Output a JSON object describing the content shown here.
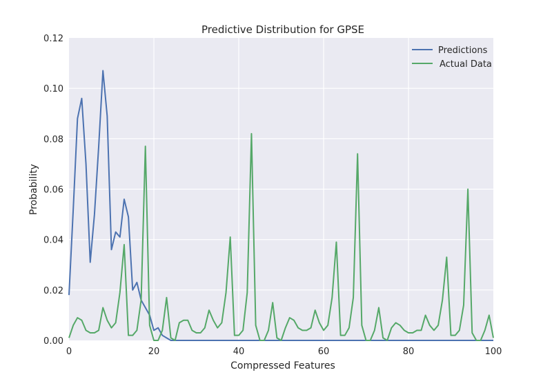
{
  "chart_data": {
    "type": "line",
    "title": "Predictive Distribution for GPSE",
    "xlabel": "Compressed Features",
    "ylabel": "Probability",
    "xlim": [
      0,
      100
    ],
    "ylim": [
      0,
      0.12
    ],
    "xticks": [
      0,
      20,
      40,
      60,
      80,
      100
    ],
    "xtick_labels": [
      "0",
      "20",
      "40",
      "60",
      "80",
      "100"
    ],
    "yticks": [
      0,
      0.02,
      0.04,
      0.06,
      0.08,
      0.1,
      0.12
    ],
    "ytick_labels": [
      "0.00",
      "0.02",
      "0.04",
      "0.06",
      "0.08",
      "0.10",
      "0.12"
    ],
    "grid": true,
    "legend_position": "top-right",
    "background": "#EAEAF2",
    "series": [
      {
        "name": "Predictions",
        "color": "#4C72B0",
        "x": [
          0,
          1,
          2,
          3,
          4,
          5,
          6,
          7,
          8,
          9,
          10,
          11,
          12,
          13,
          14,
          15,
          16,
          17,
          18,
          19,
          20,
          21,
          22,
          23,
          24,
          25,
          100
        ],
        "y": [
          0.018,
          0.052,
          0.088,
          0.096,
          0.07,
          0.031,
          0.05,
          0.077,
          0.107,
          0.089,
          0.036,
          0.043,
          0.041,
          0.056,
          0.049,
          0.02,
          0.023,
          0.016,
          0.013,
          0.01,
          0.004,
          0.005,
          0.002,
          0.001,
          0.0,
          0.0,
          0.0
        ]
      },
      {
        "name": "Actual Data",
        "color": "#55A868",
        "x": [
          0,
          1,
          2,
          3,
          4,
          5,
          6,
          7,
          8,
          9,
          10,
          11,
          12,
          13,
          14,
          15,
          16,
          17,
          18,
          19,
          20,
          21,
          22,
          23,
          24,
          25,
          26,
          27,
          28,
          29,
          30,
          31,
          32,
          33,
          34,
          35,
          36,
          37,
          38,
          39,
          40,
          41,
          42,
          43,
          44,
          45,
          46,
          47,
          48,
          49,
          50,
          51,
          52,
          53,
          54,
          55,
          56,
          57,
          58,
          59,
          60,
          61,
          62,
          63,
          64,
          65,
          66,
          67,
          68,
          69,
          70,
          71,
          72,
          73,
          74,
          75,
          76,
          77,
          78,
          79,
          80,
          81,
          82,
          83,
          84,
          85,
          86,
          87,
          88,
          89,
          90,
          91,
          92,
          93,
          94,
          95,
          96,
          97,
          98,
          99,
          100
        ],
        "y": [
          0.001,
          0.006,
          0.009,
          0.008,
          0.004,
          0.003,
          0.003,
          0.004,
          0.013,
          0.008,
          0.005,
          0.007,
          0.019,
          0.038,
          0.002,
          0.002,
          0.004,
          0.016,
          0.077,
          0.006,
          0.0,
          0.0,
          0.004,
          0.017,
          0.001,
          0.0,
          0.007,
          0.008,
          0.008,
          0.004,
          0.003,
          0.003,
          0.005,
          0.012,
          0.008,
          0.005,
          0.007,
          0.019,
          0.041,
          0.002,
          0.002,
          0.004,
          0.019,
          0.082,
          0.006,
          0.0,
          0.0,
          0.004,
          0.015,
          0.001,
          0.0,
          0.005,
          0.009,
          0.008,
          0.005,
          0.004,
          0.004,
          0.005,
          0.012,
          0.007,
          0.004,
          0.006,
          0.017,
          0.039,
          0.002,
          0.002,
          0.005,
          0.017,
          0.074,
          0.006,
          0.0,
          0.0,
          0.004,
          0.013,
          0.001,
          0.0,
          0.005,
          0.007,
          0.006,
          0.004,
          0.003,
          0.003,
          0.004,
          0.004,
          0.01,
          0.006,
          0.004,
          0.006,
          0.016,
          0.033,
          0.002,
          0.002,
          0.004,
          0.014,
          0.06,
          0.003,
          0.0,
          0.0,
          0.004,
          0.01,
          0.001
        ]
      }
    ]
  }
}
